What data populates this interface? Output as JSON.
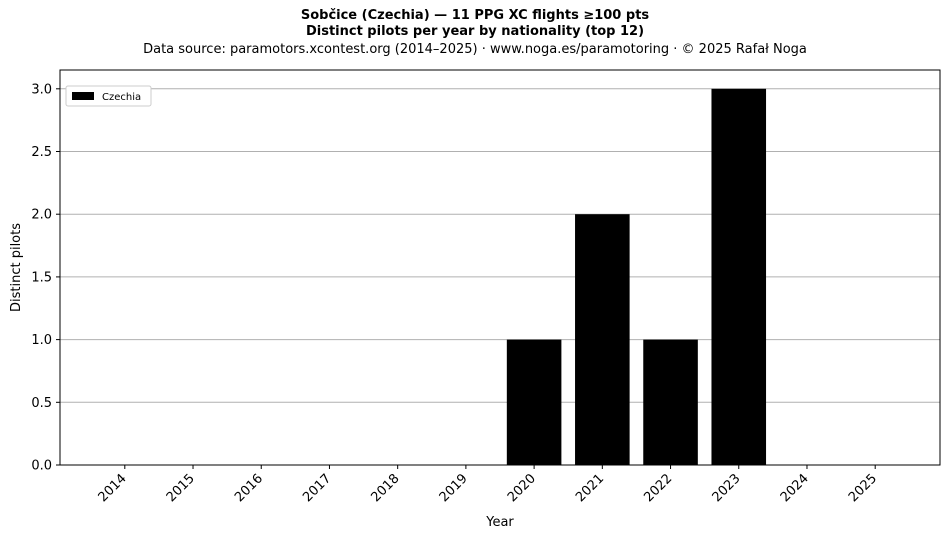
{
  "chart_data": {
    "type": "bar",
    "title": "Sobčice (Czechia)  —  11 PPG XC flights ≥100 pts",
    "subtitle": "Distinct pilots per year by nationality (top 12)",
    "source": "Data source: paramotors.xcontest.org (2014–2025)  ·  www.noga.es/paramotoring  ·  © 2025 Rafał Noga",
    "xlabel": "Year",
    "ylabel": "Distinct pilots",
    "categories": [
      "2014",
      "2015",
      "2016",
      "2017",
      "2018",
      "2019",
      "2020",
      "2021",
      "2022",
      "2023",
      "2024",
      "2025"
    ],
    "series": [
      {
        "name": "Czechia",
        "color": "#000000",
        "values": [
          0,
          0,
          0,
          0,
          0,
          0,
          1,
          2,
          1,
          3,
          0,
          0
        ]
      }
    ],
    "ylim": [
      0,
      3.15
    ],
    "yticks": [
      "0.0",
      "0.5",
      "1.0",
      "1.5",
      "2.0",
      "2.5",
      "3.0"
    ],
    "grid": "y",
    "legend_position": "top-left"
  }
}
